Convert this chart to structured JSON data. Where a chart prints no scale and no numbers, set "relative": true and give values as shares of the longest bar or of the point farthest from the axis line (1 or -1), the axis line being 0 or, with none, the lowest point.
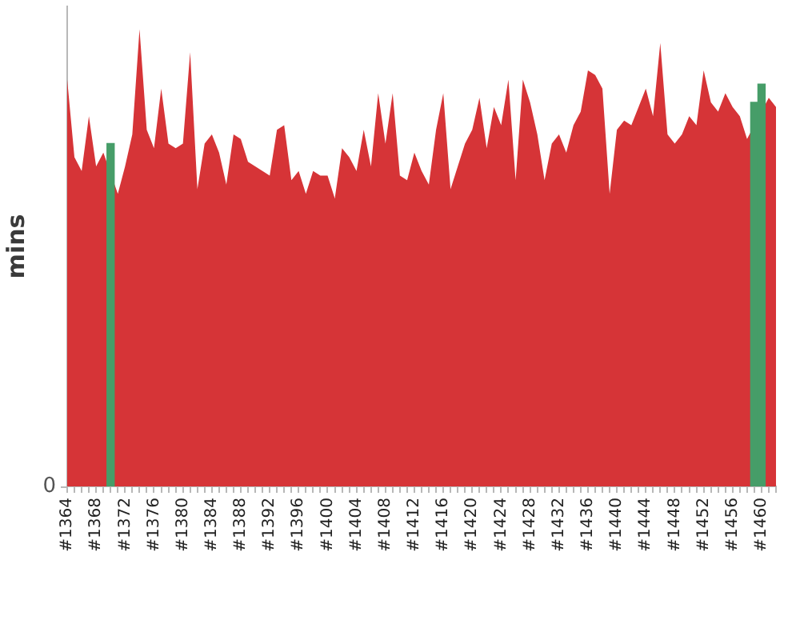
{
  "chart_data": {
    "type": "area",
    "ylabel": "mins",
    "relative": true,
    "annotations": [
      "0"
    ],
    "categories": [
      "#1364",
      null,
      null,
      null,
      "#1368",
      null,
      null,
      null,
      "#1372",
      null,
      null,
      null,
      "#1376",
      null,
      null,
      null,
      "#1380",
      null,
      null,
      null,
      "#1384",
      null,
      null,
      null,
      "#1388",
      null,
      null,
      null,
      "#1392",
      null,
      null,
      null,
      "#1396",
      null,
      null,
      null,
      "#1400",
      null,
      null,
      null,
      "#1404",
      null,
      null,
      null,
      "#1408",
      null,
      null,
      null,
      "#1412",
      null,
      null,
      null,
      "#1416",
      null,
      null,
      null,
      "#1420",
      null,
      null,
      null,
      "#1424",
      null,
      null,
      null,
      "#1428",
      null,
      null,
      null,
      "#1432",
      null,
      null,
      null,
      "#1436",
      null,
      null,
      null,
      "#1440",
      null,
      null,
      null,
      "#1444",
      null,
      null,
      null,
      "#1448",
      null,
      null,
      null,
      "#1452",
      null,
      null,
      null,
      "#1456",
      null,
      null,
      null,
      "#1460",
      null,
      null
    ],
    "series": [
      {
        "color": "#d63437",
        "values": [
          0.89,
          0.72,
          0.69,
          0.81,
          0.7,
          0.73,
          null,
          0.64,
          0.7,
          0.77,
          1,
          0.78,
          0.74,
          0.87,
          0.75,
          0.74,
          0.75,
          0.95,
          0.65,
          0.75,
          0.77,
          0.73,
          0.66,
          0.77,
          0.76,
          0.71,
          0.7,
          0.69,
          0.68,
          0.78,
          0.79,
          0.67,
          0.69,
          0.64,
          0.69,
          0.68,
          0.68,
          0.63,
          0.74,
          0.72,
          0.69,
          0.78,
          0.7,
          0.86,
          0.75,
          0.86,
          0.68,
          0.67,
          0.73,
          0.69,
          0.66,
          0.78,
          0.86,
          0.65,
          0.7,
          0.75,
          0.78,
          0.85,
          0.74,
          0.83,
          0.79,
          0.89,
          0.67,
          0.89,
          0.84,
          0.77,
          0.67,
          0.75,
          0.77,
          0.73,
          0.79,
          0.82,
          0.91,
          0.9,
          0.87,
          0.64,
          0.78,
          0.8,
          0.79,
          0.83,
          0.87,
          0.81,
          0.97,
          0.77,
          0.75,
          0.77,
          0.81,
          0.79,
          0.91,
          0.84,
          0.82,
          0.86,
          0.83,
          0.81,
          0.76,
          null,
          null,
          0.85,
          0.83
        ]
      },
      {
        "type": "bar",
        "color": "#469d68",
        "values": [
          null,
          null,
          null,
          null,
          null,
          null,
          0.75,
          null,
          null,
          null,
          null,
          null,
          null,
          null,
          null,
          null,
          null,
          null,
          null,
          null,
          null,
          null,
          null,
          null,
          null,
          null,
          null,
          null,
          null,
          null,
          null,
          null,
          null,
          null,
          null,
          null,
          null,
          null,
          null,
          null,
          null,
          null,
          null,
          null,
          null,
          null,
          null,
          null,
          null,
          null,
          null,
          null,
          null,
          null,
          null,
          null,
          null,
          null,
          null,
          null,
          null,
          null,
          null,
          null,
          null,
          null,
          null,
          null,
          null,
          null,
          null,
          null,
          null,
          null,
          null,
          null,
          null,
          null,
          null,
          null,
          null,
          null,
          null,
          null,
          null,
          null,
          null,
          null,
          null,
          null,
          null,
          null,
          null,
          null,
          null,
          0.84,
          0.88,
          null,
          null
        ]
      }
    ]
  }
}
